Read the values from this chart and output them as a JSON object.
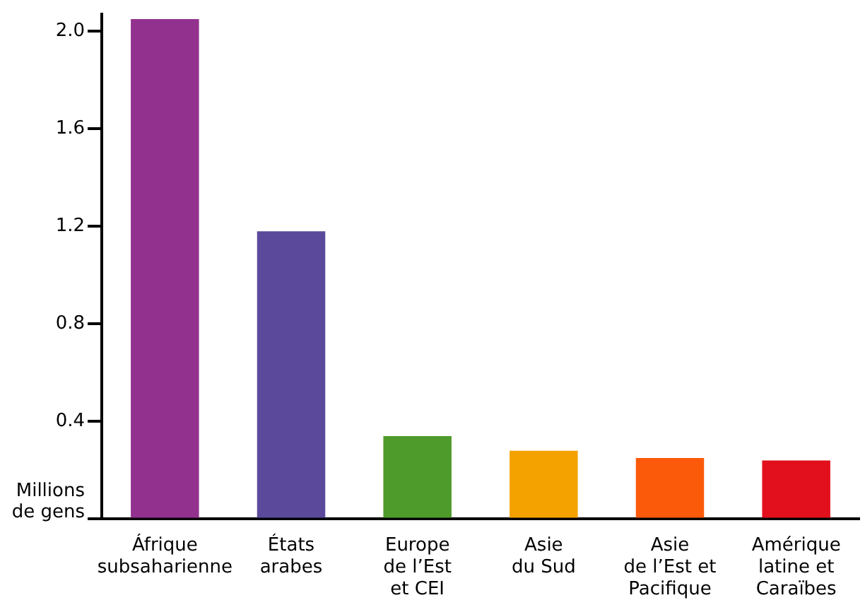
{
  "chart_data": {
    "type": "bar",
    "ylabel": "Millions\nde gens",
    "categories": [
      "Áfrique\nsubsaharienne",
      "États\narabes",
      "Europe\nde l’Est\net CEI",
      "Asie\ndu Sud",
      "Asie\nde l’Est et\nPacifique",
      "Amérique\nlatine et\nCaraïbes"
    ],
    "values": [
      2.05,
      1.18,
      0.34,
      0.28,
      0.25,
      0.24
    ],
    "colors": [
      "#93318f",
      "#5b4a9b",
      "#4e9a2a",
      "#f3a200",
      "#fb5a0a",
      "#e2101c"
    ],
    "ylim": [
      0,
      2.07
    ],
    "yticks": [
      {
        "value": 0,
        "label": null
      },
      0.4,
      0.8,
      1.2,
      {
        "value": 1.6,
        "label": "1.6"
      },
      {
        "value": 2,
        "label": "2.0"
      }
    ],
    "grid": false,
    "legend": false
  }
}
